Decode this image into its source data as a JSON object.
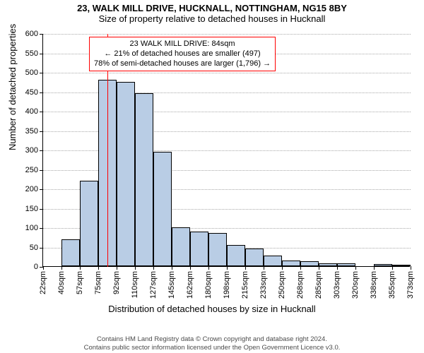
{
  "title": {
    "main": "23, WALK MILL DRIVE, HUCKNALL, NOTTINGHAM, NG15 8BY",
    "sub": "Size of property relative to detached houses in Hucknall"
  },
  "axes": {
    "ylabel": "Number of detached properties",
    "xlabel": "Distribution of detached houses by size in Hucknall",
    "ymax": 600,
    "ytick_step": 50,
    "yticks": [
      0,
      50,
      100,
      150,
      200,
      250,
      300,
      350,
      400,
      450,
      500,
      550,
      600
    ],
    "xticks": [
      "22sqm",
      "40sqm",
      "57sqm",
      "75sqm",
      "92sqm",
      "110sqm",
      "127sqm",
      "145sqm",
      "162sqm",
      "180sqm",
      "198sqm",
      "215sqm",
      "233sqm",
      "250sqm",
      "268sqm",
      "285sqm",
      "303sqm",
      "320sqm",
      "338sqm",
      "355sqm",
      "373sqm"
    ]
  },
  "chart": {
    "type": "histogram",
    "bar_fill": "#b9cde5",
    "bar_stroke": "#000000",
    "grid_color": "#a9a9a9",
    "background_color": "#ffffff",
    "reference_line_color": "#ff0000",
    "reference_bin_index": 3,
    "reference_fraction_in_bin": 0.51,
    "values": [
      0,
      70,
      220,
      480,
      475,
      445,
      295,
      100,
      90,
      85,
      55,
      45,
      28,
      15,
      12,
      8,
      8,
      0,
      5,
      2
    ]
  },
  "annotation": {
    "line1": "23 WALK MILL DRIVE: 84sqm",
    "line2": "← 21% of detached houses are smaller (497)",
    "line3": "78% of semi-detached houses are larger (1,796) →",
    "border_color": "#ff0000"
  },
  "footer": {
    "line1": "Contains HM Land Registry data © Crown copyright and database right 2024.",
    "line2": "Contains public sector information licensed under the Open Government Licence v3.0."
  },
  "style": {
    "title_fontsize": 13,
    "axis_label_fontsize": 13,
    "tick_fontsize": 11,
    "annotation_fontsize": 11,
    "footer_fontsize": 9.5,
    "footer_color": "#4b4b4b"
  }
}
